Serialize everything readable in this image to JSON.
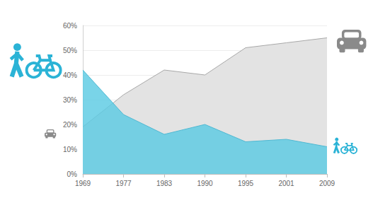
{
  "chart_data": {
    "type": "area",
    "categories": [
      "1969",
      "1977",
      "1983",
      "1990",
      "1995",
      "2001",
      "2009"
    ],
    "series": [
      {
        "color": "#e3e3e3",
        "values": [
          19,
          32,
          42,
          40,
          51,
          53,
          55
        ]
      },
      {
        "color": "#5ccbe3",
        "values": [
          42,
          24,
          16,
          20,
          13,
          14,
          11
        ]
      }
    ],
    "ylim": [
      0,
      60
    ],
    "yticks": [
      {
        "value": 0,
        "label": "0%"
      },
      {
        "value": 10,
        "label": "10%"
      },
      {
        "value": 20,
        "label": "20%"
      },
      {
        "value": 30,
        "label": "30%"
      },
      {
        "value": 40,
        "label": "40%"
      },
      {
        "value": 50,
        "label": "50%"
      },
      {
        "value": 60,
        "label": "60%"
      }
    ],
    "grid": true,
    "stacked": false
  }
}
